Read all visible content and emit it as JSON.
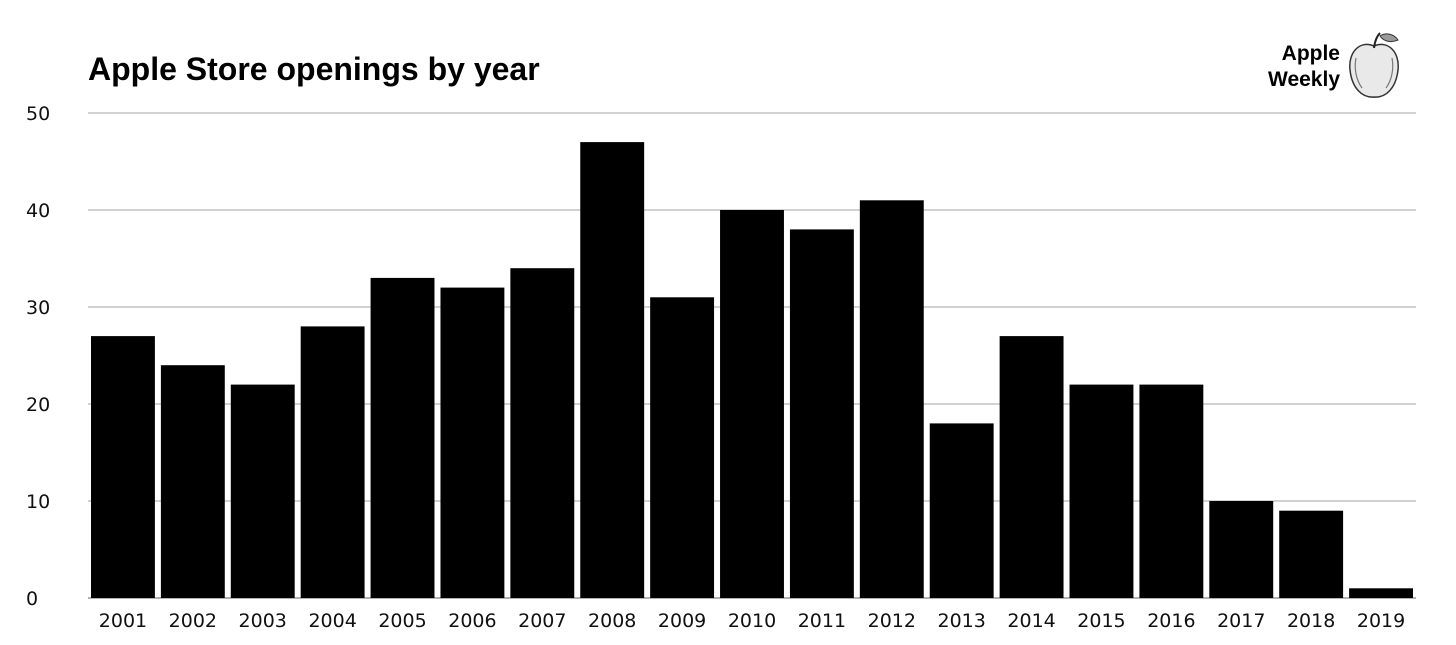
{
  "logo": {
    "line1": "Apple",
    "line2": "Weekly"
  },
  "chart_data": {
    "type": "bar",
    "title": "Apple Store openings by year",
    "xlabel": "",
    "ylabel": "",
    "categories": [
      "2001",
      "2002",
      "2003",
      "2004",
      "2005",
      "2006",
      "2007",
      "2008",
      "2009",
      "2010",
      "2011",
      "2012",
      "2013",
      "2014",
      "2015",
      "2016",
      "2017",
      "2018",
      "2019"
    ],
    "values": [
      27,
      24,
      22,
      28,
      33,
      32,
      34,
      47,
      31,
      40,
      38,
      41,
      18,
      27,
      22,
      22,
      10,
      9,
      1
    ],
    "ylim": [
      0,
      50
    ],
    "yticks": [
      0,
      10,
      20,
      30,
      40,
      50
    ],
    "grid": true,
    "legend": "none",
    "colors": {
      "bar": "#000000",
      "grid": "#d2d2d2"
    }
  }
}
